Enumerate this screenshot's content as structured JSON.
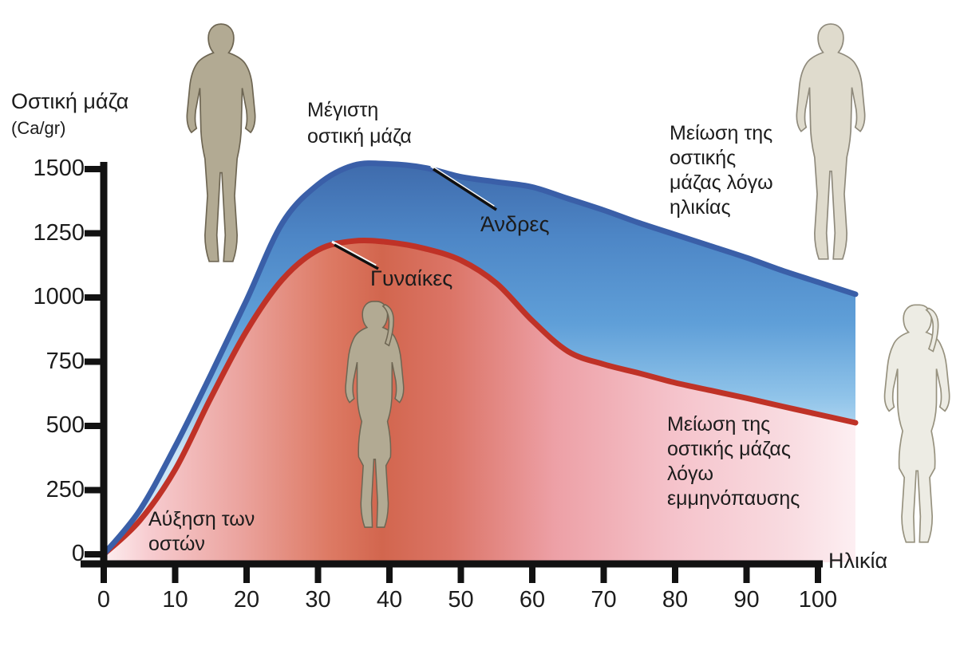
{
  "chart_data": {
    "type": "area",
    "title": "",
    "xlabel": "Ηλικία",
    "ylabel": "Οστική μάζα (Ca/gr)",
    "xlim": [
      0,
      100
    ],
    "ylim": [
      0,
      1500
    ],
    "x_ticks": [
      0,
      10,
      20,
      30,
      40,
      50,
      60,
      70,
      80,
      90,
      100
    ],
    "y_ticks": [
      0,
      250,
      500,
      750,
      1000,
      1250,
      1500
    ],
    "grid": false,
    "legend_position": "inline-annotations",
    "x": [
      0,
      5,
      10,
      15,
      20,
      25,
      30,
      35,
      40,
      45,
      50,
      55,
      60,
      65,
      70,
      75,
      80,
      85,
      90,
      95,
      100
    ],
    "series": [
      {
        "name": "Άνδρες",
        "color": "#3a5fa8",
        "values": [
          0,
          170,
          420,
          700,
          990,
          1290,
          1440,
          1515,
          1520,
          1505,
          1470,
          1450,
          1430,
          1385,
          1340,
          1290,
          1245,
          1200,
          1155,
          1105,
          1060
        ]
      },
      {
        "name": "Γυναίκες",
        "color": "#bf3227",
        "values": [
          0,
          130,
          330,
          610,
          870,
          1070,
          1185,
          1220,
          1215,
          1190,
          1145,
          1055,
          910,
          790,
          740,
          705,
          668,
          638,
          608,
          576,
          545
        ]
      }
    ]
  },
  "labels": {
    "y_axis_title": {
      "line1": "Οστική μάζα",
      "line2": "(Ca/gr)"
    },
    "x_axis_title": "Ηλικία",
    "peak": {
      "lines": [
        "Μέγιστη",
        "οστική μάζα"
      ]
    },
    "men": "Άνδρες",
    "women": "Γυναίκες",
    "decline_age": {
      "lines": [
        "Μείωση της",
        "οστικής",
        "μάζας λόγω",
        "ηλικίας"
      ]
    },
    "decline_menopause": {
      "lines": [
        "Μείωση της",
        "οστικής μάζας",
        "λόγω",
        "εμμηνόπαυσης"
      ]
    },
    "bone_growth": {
      "lines": [
        "Αύξηση των",
        "οστών"
      ]
    }
  },
  "colors": {
    "men_curve": "#3a5fa8",
    "women_curve": "#bf3227",
    "axis": "#121212",
    "figure_tan": "#b2aa93",
    "figure_beige": "#dfdbcd",
    "figure_pale": "#edece4"
  },
  "figures": [
    {
      "name": "male-silhouette-left",
      "variant": "tan"
    },
    {
      "name": "female-silhouette-center",
      "variant": "tan"
    },
    {
      "name": "male-silhouette-right",
      "variant": "beige"
    },
    {
      "name": "female-silhouette-right",
      "variant": "pale"
    }
  ]
}
